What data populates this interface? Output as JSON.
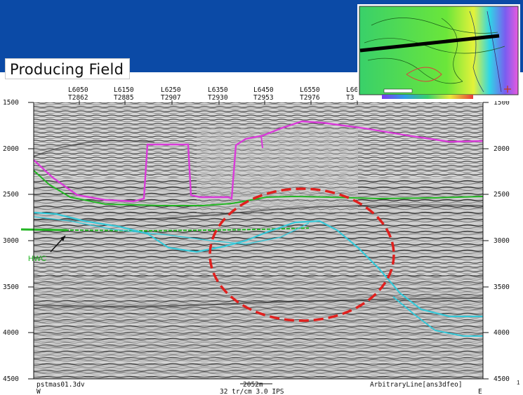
{
  "slide": {
    "title": "Producing Field",
    "page_number": "1"
  },
  "section": {
    "line_labels": [
      "L6050",
      "L6150",
      "L6250",
      "L6350",
      "L6450",
      "L6550",
      "L66"
    ],
    "trace_labels": [
      "T2862",
      "T2885",
      "T2907",
      "T2930",
      "T2953",
      "T2976",
      "T3"
    ],
    "depth_labels": [
      "1500",
      "2000",
      "2500",
      "3000",
      "3500",
      "4000",
      "4500"
    ],
    "hwc_label": "HWC",
    "footer_left": "pstmas01.3dv",
    "footer_center_top": "2052m",
    "footer_center_bottom": "32 tr/cm 3.0 IPS",
    "footer_right": "ArbitraryLine[ans3dfeo]",
    "dir_west": "W",
    "dir_east": "E"
  },
  "colors": {
    "background": "#0b4aa6",
    "horizon_top": "#d93ad9",
    "horizon_green": "#22b522",
    "horizon_cyan": "#35c8d8",
    "anomaly_outline": "#e0201e"
  }
}
